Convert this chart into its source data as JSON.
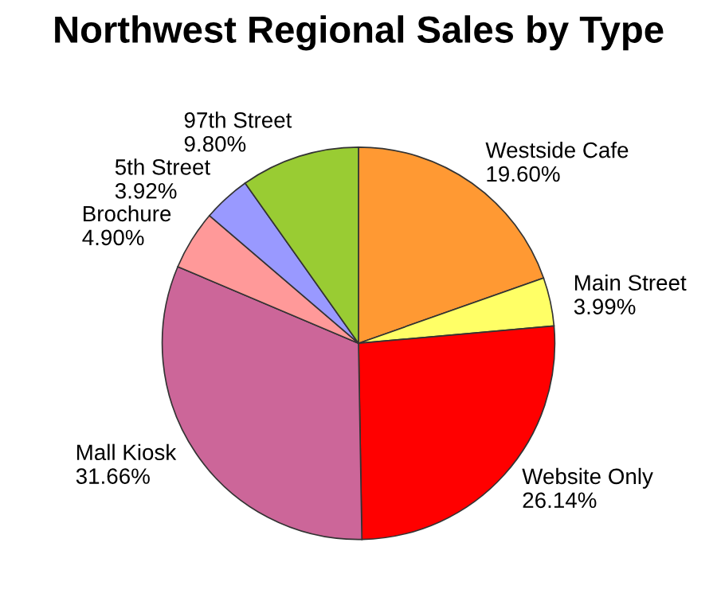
{
  "chart_data": {
    "type": "pie",
    "title": "Northwest Regional Sales by Type",
    "categories": [
      "Westside Cafe",
      "Main Street",
      "Website Only",
      "Mall Kiosk",
      "Brochure",
      "5th Street",
      "97th Street"
    ],
    "values": [
      19.6,
      3.99,
      26.14,
      31.66,
      4.9,
      3.92,
      9.8
    ],
    "value_labels": [
      "19.60%",
      "3.99%",
      "26.14%",
      "31.66%",
      "4.90%",
      "3.92%",
      "9.80%"
    ],
    "colors": [
      "#ff9933",
      "#ffff66",
      "#ff0000",
      "#cc6699",
      "#ff9999",
      "#9999ff",
      "#99cc33"
    ],
    "legend": false
  }
}
